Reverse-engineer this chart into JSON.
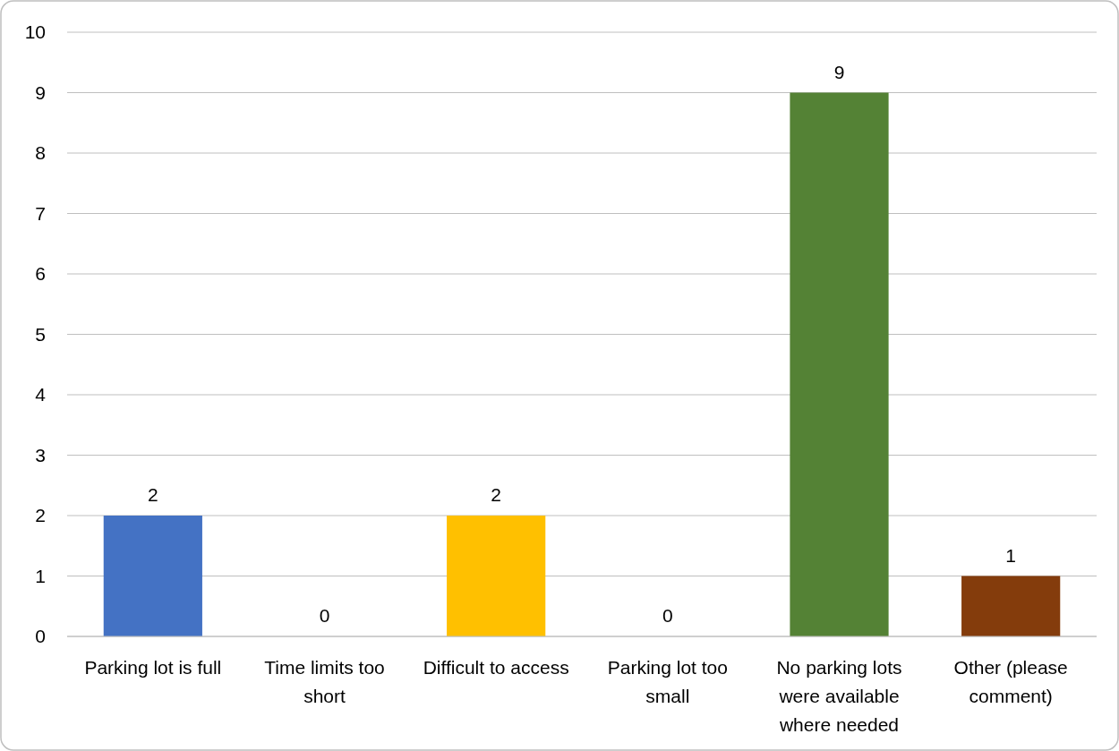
{
  "chart_data": {
    "type": "bar",
    "categories": [
      "Parking lot is full",
      "Time limits too short",
      "Difficult to access",
      "Parking lot too small",
      "No parking lots were available where needed",
      "Other (please comment)"
    ],
    "values": [
      2,
      0,
      2,
      0,
      9,
      1
    ],
    "colors": [
      "#4472c4",
      "#ed7d31",
      "#ffc000",
      "#a5a5a5",
      "#548235",
      "#843c0c"
    ],
    "ylim": [
      0,
      10
    ],
    "yticks": [
      0,
      1,
      2,
      3,
      4,
      5,
      6,
      7,
      8,
      9,
      10
    ],
    "grid": "y",
    "data_labels": true
  }
}
